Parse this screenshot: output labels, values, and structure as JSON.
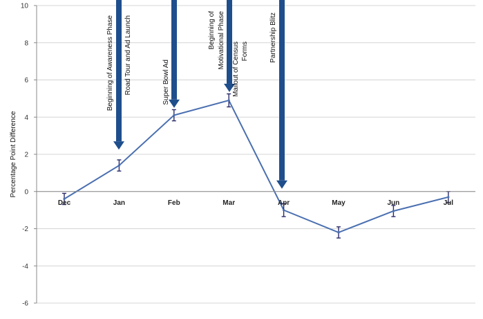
{
  "chart_data": {
    "type": "line",
    "title": "",
    "xlabel": "",
    "ylabel": "Percentage Point Difference",
    "ylim": [
      -6,
      10
    ],
    "yticks": [
      -6,
      -4,
      -2,
      0,
      2,
      4,
      6,
      8,
      10
    ],
    "grid": true,
    "categories": [
      "Dec",
      "Jan",
      "Feb",
      "Mar",
      "Apr",
      "May",
      "Jun",
      "Jul"
    ],
    "series": [
      {
        "values": [
          -0.4,
          1.4,
          4.1,
          4.9,
          -1.0,
          -2.2,
          -1.05,
          -0.3
        ],
        "error": [
          0.3,
          0.3,
          0.3,
          0.35,
          0.35,
          0.3,
          0.3,
          0.3
        ],
        "color": "#4a6fb0"
      }
    ],
    "annotations": [
      {
        "lines": [
          "Beginning of Awareness Phase",
          "Road Tour and Ad Launch"
        ],
        "x": "Jan",
        "arrow_tip_y": 2.25
      },
      {
        "lines": [
          "Super Bowl Ad"
        ],
        "x": "Feb",
        "arrow_tip_y": 4.5
      },
      {
        "lines": [
          "Beginning of",
          "Motivational Phase"
        ],
        "x": "Mar",
        "arrow_tip_y": 5.35
      },
      {
        "lines": [
          "Mailout of Census",
          "Forms"
        ],
        "x": "Mar",
        "arrow_tip_y": null
      },
      {
        "lines": [
          "Partnership Blitz"
        ],
        "x": "Apr",
        "arrow_tip_y": 0.15
      }
    ],
    "arrow_color": "#1f4e8c"
  }
}
